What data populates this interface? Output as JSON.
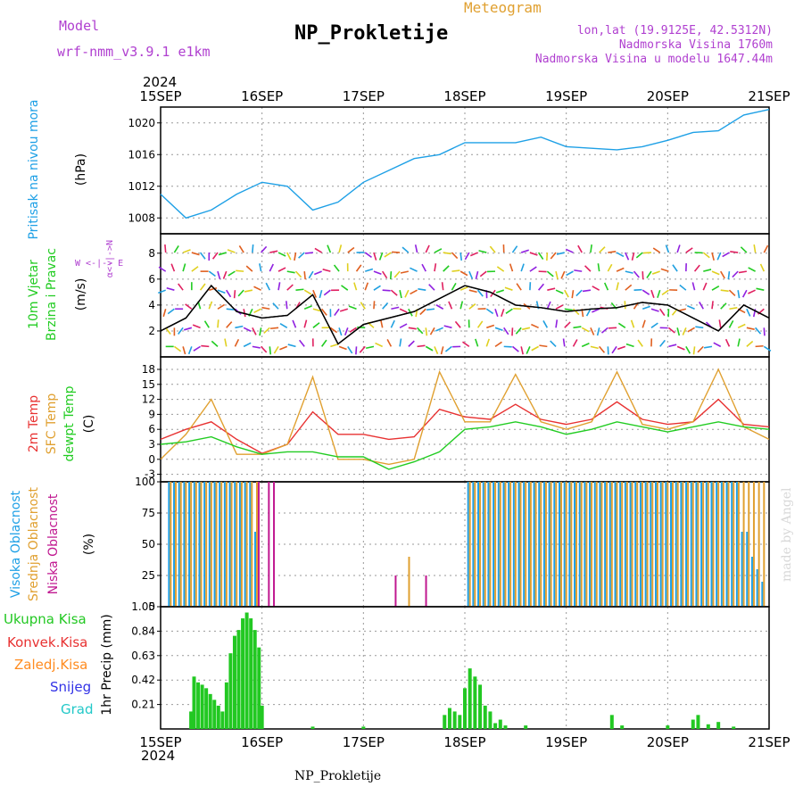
{
  "header": {
    "model_label": "Model",
    "model_name": "wrf-nmm_v3.9.1 e1km",
    "title": "NP_Prokletije",
    "subtitle": "Meteogram",
    "lonlat": "lon,lat (19.9125E, 42.5312N)",
    "altitude": "Nadmorska Visina 1760m",
    "model_altitude": "Nadmorska Visina u modelu 1647.44m",
    "year_top": "2024",
    "year_bottom": "2024",
    "footer_name": "NP_Prokletije",
    "credit": "made by Angel"
  },
  "colors": {
    "pressure": "#1ea0e6",
    "temp2m": "#e83232",
    "sfc_temp": "#e0a030",
    "dewpoint": "#22cc22",
    "cloud_high": "#1ea0e6",
    "cloud_mid": "#e0a030",
    "cloud_low": "#c01890",
    "precip_total": "#22c822",
    "precip_conv": "#e83232",
    "precip_frozen": "#ff8c20",
    "snow": "#3232e6",
    "hail": "#22c8c8",
    "model_label": "#b040d0"
  },
  "chart_data": [
    {
      "panel": "pressure",
      "type": "line",
      "x_labels": [
        "15SEP",
        "16SEP",
        "17SEP",
        "18SEP",
        "19SEP",
        "20SEP",
        "21SEP"
      ],
      "ylabel_name": "Pritisak na nivou mora",
      "ylabel_unit": "(hPa)",
      "yticks": [
        1008,
        1012,
        1016,
        1020
      ],
      "ylim": [
        1006,
        1022
      ],
      "grid": true,
      "x": [
        0,
        0.25,
        0.5,
        0.75,
        1,
        1.25,
        1.5,
        1.75,
        2,
        2.25,
        2.5,
        2.75,
        3,
        3.25,
        3.5,
        3.75,
        4,
        4.25,
        4.5,
        4.75,
        5,
        5.25,
        5.5,
        5.75,
        6
      ],
      "series": [
        {
          "values": [
            1011,
            1008,
            1009,
            1011,
            1012.5,
            1012,
            1009,
            1010,
            1012.5,
            1014,
            1015.5,
            1016,
            1017.5,
            1017.5,
            1017.5,
            1018.2,
            1017,
            1016.8,
            1016.6,
            1017,
            1017.8,
            1018.8,
            1019,
            1021,
            1021.7
          ]
        }
      ]
    },
    {
      "panel": "wind",
      "type": "line",
      "ylabel_name_1": "10m Vjetar",
      "ylabel_name_2": "Brzina i Pravac",
      "ylabel_unit": "(m/s)",
      "direction_key": "W <-|-> E",
      "direction_key_vert": "α<-|->N",
      "yticks": [
        2,
        4,
        6,
        8
      ],
      "ylim": [
        0,
        9.5
      ],
      "grid": true,
      "x": [
        0,
        0.25,
        0.5,
        0.75,
        1,
        1.25,
        1.5,
        1.75,
        2,
        2.25,
        2.5,
        2.75,
        3,
        3.25,
        3.5,
        3.75,
        4,
        4.25,
        4.5,
        4.75,
        5,
        5.25,
        5.5,
        5.75,
        6
      ],
      "series": [
        {
          "values": [
            2,
            3,
            5.5,
            3.5,
            3,
            3.2,
            4.8,
            1,
            2.5,
            3,
            3.5,
            4.5,
            5.5,
            5,
            4,
            3.8,
            3.5,
            3.7,
            3.8,
            4.2,
            4,
            3,
            2,
            4,
            3
          ]
        }
      ]
    },
    {
      "panel": "temperature",
      "type": "line",
      "ylabel_names": [
        "2m Temp",
        "SFC Temp",
        "dewpt Temp"
      ],
      "ylabel_unit": "(C)",
      "yticks": [
        -3,
        0,
        3,
        6,
        9,
        12,
        15,
        18
      ],
      "ylim": [
        -4.5,
        20.5
      ],
      "grid": true,
      "x": [
        0,
        0.25,
        0.5,
        0.75,
        1,
        1.25,
        1.5,
        1.75,
        2,
        2.25,
        2.5,
        2.75,
        3,
        3.25,
        3.5,
        3.75,
        4,
        4.25,
        4.5,
        4.75,
        5,
        5.25,
        5.5,
        5.75,
        6
      ],
      "series": [
        {
          "name": "2m Temp",
          "values": [
            4,
            6,
            7.5,
            4,
            1.2,
            3,
            9.5,
            5,
            5,
            4,
            4.5,
            10,
            8.5,
            8,
            11,
            8,
            7,
            8,
            11.5,
            8,
            7,
            7.5,
            12,
            7,
            6.5
          ]
        },
        {
          "name": "SFC Temp",
          "values": [
            0,
            5,
            12,
            1,
            1,
            3,
            16.5,
            0,
            0,
            -1,
            0,
            17.5,
            7.5,
            7.5,
            17,
            7.5,
            6,
            7.5,
            17.5,
            7,
            6,
            7.5,
            18,
            6.5,
            4
          ]
        },
        {
          "name": "dewpt Temp",
          "values": [
            3,
            3.5,
            4.5,
            2.5,
            1,
            1.5,
            1.5,
            0.5,
            0.5,
            -2,
            -0.5,
            1.5,
            6,
            6.5,
            7.5,
            6.5,
            5,
            6,
            7.5,
            6.5,
            5.5,
            6.5,
            7.5,
            6.5,
            6
          ]
        }
      ]
    },
    {
      "panel": "clouds",
      "type": "bar",
      "ylabel_names": [
        "Visoka Oblacnost",
        "Srednja Oblacnost",
        "Niska Oblacnost"
      ],
      "ylabel_unit": "(%)",
      "yticks": [
        0,
        25,
        50,
        75,
        100
      ],
      "ylim": [
        0,
        100
      ],
      "grid": true,
      "x": [
        0.1,
        0.15,
        0.2,
        0.25,
        0.3,
        0.35,
        0.4,
        0.45,
        0.5,
        0.55,
        0.6,
        0.65,
        0.7,
        0.75,
        0.8,
        0.85,
        0.9,
        0.95,
        1.05,
        1.1,
        2.0,
        2.3,
        2.45,
        2.6,
        2.7,
        2.8,
        3.05,
        3.1,
        3.15,
        3.2,
        3.25,
        3.3,
        3.35,
        3.4,
        3.45,
        3.5,
        3.55,
        3.6,
        3.65,
        3.7,
        3.75,
        3.8,
        3.85,
        3.9,
        3.95,
        4.0,
        4.05,
        4.1,
        4.15,
        4.2,
        4.25,
        4.3,
        4.35,
        4.4,
        4.45,
        4.5,
        4.55,
        4.6,
        4.65,
        4.7,
        4.75,
        4.8,
        4.85,
        4.9,
        4.95,
        5.0,
        5.05,
        5.1,
        5.15,
        5.2,
        5.25,
        5.3,
        5.35,
        5.4,
        5.45,
        5.5,
        5.55,
        5.6,
        5.65,
        5.7,
        5.75,
        5.8,
        5.85,
        5.9,
        5.95
      ],
      "series": [
        {
          "name": "Visoka Oblacnost",
          "values": [
            100,
            100,
            100,
            100,
            100,
            100,
            100,
            100,
            100,
            100,
            100,
            100,
            100,
            100,
            100,
            100,
            100,
            60,
            0,
            0,
            0,
            0,
            0,
            0,
            0,
            0,
            100,
            100,
            100,
            100,
            100,
            100,
            100,
            100,
            100,
            100,
            100,
            100,
            100,
            100,
            100,
            100,
            100,
            100,
            100,
            100,
            100,
            100,
            100,
            100,
            100,
            100,
            100,
            100,
            100,
            100,
            100,
            100,
            100,
            100,
            100,
            100,
            100,
            100,
            100,
            100,
            100,
            100,
            100,
            100,
            100,
            100,
            100,
            100,
            100,
            100,
            100,
            100,
            100,
            100,
            60,
            60,
            40,
            30,
            20
          ]
        },
        {
          "name": "Srednja Oblacnost",
          "values": [
            100,
            100,
            100,
            100,
            100,
            100,
            100,
            100,
            100,
            100,
            100,
            100,
            100,
            100,
            100,
            100,
            100,
            100,
            0,
            0,
            0,
            0,
            40,
            0,
            0,
            0,
            100,
            100,
            100,
            100,
            100,
            100,
            100,
            100,
            100,
            100,
            100,
            100,
            100,
            100,
            100,
            100,
            100,
            100,
            100,
            100,
            100,
            100,
            100,
            100,
            100,
            100,
            100,
            100,
            100,
            100,
            100,
            100,
            100,
            100,
            100,
            100,
            100,
            100,
            100,
            100,
            100,
            100,
            100,
            100,
            100,
            100,
            100,
            100,
            100,
            100,
            100,
            100,
            100,
            100,
            100,
            100,
            100,
            100,
            100
          ]
        },
        {
          "name": "Niska Oblacnost",
          "values": [
            0,
            0,
            0,
            0,
            0,
            0,
            0,
            0,
            0,
            0,
            0,
            0,
            0,
            0,
            0,
            0,
            0,
            100,
            100,
            100,
            0,
            25,
            0,
            25,
            0,
            0,
            0,
            0,
            0,
            0,
            0,
            0,
            0,
            0,
            0,
            0,
            0,
            0,
            0,
            0,
            0,
            0,
            0,
            0,
            0,
            0,
            0,
            0,
            0,
            0,
            0,
            0,
            0,
            0,
            0,
            0,
            0,
            0,
            0,
            0,
            0,
            0,
            0,
            0,
            0,
            0,
            0,
            0,
            0,
            0,
            0,
            0,
            0,
            0,
            0,
            0,
            0,
            0,
            0,
            0,
            0,
            0,
            0,
            0,
            0
          ]
        }
      ]
    },
    {
      "panel": "precip",
      "type": "bar",
      "ylabel_names": [
        "Ukupna Kisa",
        "Konvek.Kisa",
        "Zaledj.Kisa",
        "Snijeg",
        "Grad"
      ],
      "ylabel_unit": "1hr Precip (mm)",
      "yticks": [
        0.21,
        0.42,
        0.63,
        0.84,
        1.05
      ],
      "ylim": [
        0,
        1.05
      ],
      "grid": true,
      "x": [
        0.3,
        0.33,
        0.37,
        0.41,
        0.45,
        0.49,
        0.53,
        0.57,
        0.61,
        0.65,
        0.69,
        0.73,
        0.77,
        0.81,
        0.85,
        0.89,
        0.93,
        0.97,
        1.0,
        1.5,
        2.0,
        2.8,
        2.85,
        2.9,
        2.95,
        3.0,
        3.05,
        3.1,
        3.15,
        3.2,
        3.25,
        3.3,
        3.35,
        3.4,
        3.6,
        4.45,
        4.55,
        5.0,
        5.25,
        5.3,
        5.4,
        5.5,
        5.65
      ],
      "series": [
        {
          "name": "Ukupna Kisa",
          "values": [
            0.15,
            0.45,
            0.4,
            0.38,
            0.35,
            0.3,
            0.25,
            0.2,
            0.15,
            0.4,
            0.65,
            0.8,
            0.85,
            0.95,
            1.0,
            0.95,
            0.85,
            0.7,
            0.2,
            0.02,
            0.02,
            0.12,
            0.18,
            0.15,
            0.12,
            0.35,
            0.52,
            0.45,
            0.38,
            0.2,
            0.15,
            0.05,
            0.08,
            0.03,
            0.03,
            0.12,
            0.03,
            0.03,
            0.08,
            0.12,
            0.04,
            0.06,
            0.02
          ]
        }
      ]
    }
  ]
}
